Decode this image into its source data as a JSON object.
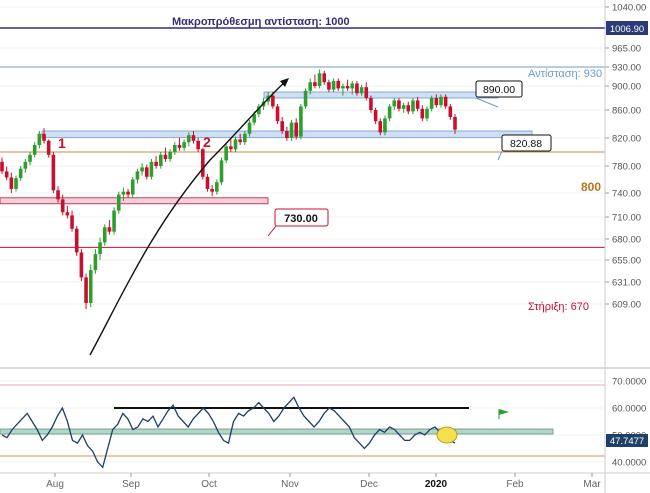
{
  "chart_data": [
    {
      "type": "candlestick",
      "title": "",
      "y_ticks": [
        1040,
        1000,
        965,
        930,
        900,
        860,
        820,
        780,
        740,
        710,
        680,
        655,
        631,
        609
      ],
      "ylim": [
        590,
        1055
      ],
      "x_labels": [
        "Aug",
        "Sep",
        "Oct",
        "Nov",
        "Dec",
        "2020",
        "Feb",
        "Mar"
      ],
      "price_badge": {
        "value": "1006.90",
        "color": "#2b3a78"
      },
      "candles_bull_color": "#2e9e2e",
      "candles_bear_color": "#c8102e",
      "candles": [
        {
          "o": 786,
          "h": 792,
          "l": 768,
          "c": 772
        },
        {
          "o": 772,
          "h": 779,
          "l": 759,
          "c": 763
        },
        {
          "o": 763,
          "h": 770,
          "l": 740,
          "c": 746
        },
        {
          "o": 746,
          "h": 766,
          "l": 742,
          "c": 762
        },
        {
          "o": 762,
          "h": 780,
          "l": 758,
          "c": 776
        },
        {
          "o": 776,
          "h": 790,
          "l": 770,
          "c": 786
        },
        {
          "o": 786,
          "h": 800,
          "l": 781,
          "c": 796
        },
        {
          "o": 796,
          "h": 814,
          "l": 792,
          "c": 810
        },
        {
          "o": 810,
          "h": 830,
          "l": 805,
          "c": 826
        },
        {
          "o": 826,
          "h": 834,
          "l": 812,
          "c": 816
        },
        {
          "o": 816,
          "h": 818,
          "l": 792,
          "c": 796
        },
        {
          "o": 796,
          "h": 800,
          "l": 740,
          "c": 744
        },
        {
          "o": 744,
          "h": 750,
          "l": 728,
          "c": 732
        },
        {
          "o": 732,
          "h": 738,
          "l": 712,
          "c": 716
        },
        {
          "o": 716,
          "h": 724,
          "l": 708,
          "c": 712
        },
        {
          "o": 712,
          "h": 718,
          "l": 690,
          "c": 694
        },
        {
          "o": 694,
          "h": 698,
          "l": 660,
          "c": 664
        },
        {
          "o": 664,
          "h": 668,
          "l": 632,
          "c": 636
        },
        {
          "o": 636,
          "h": 640,
          "l": 604,
          "c": 610
        },
        {
          "o": 610,
          "h": 650,
          "l": 606,
          "c": 644
        },
        {
          "o": 644,
          "h": 668,
          "l": 640,
          "c": 662
        },
        {
          "o": 662,
          "h": 682,
          "l": 655,
          "c": 676
        },
        {
          "o": 676,
          "h": 700,
          "l": 672,
          "c": 696
        },
        {
          "o": 696,
          "h": 706,
          "l": 686,
          "c": 690
        },
        {
          "o": 690,
          "h": 722,
          "l": 686,
          "c": 718
        },
        {
          "o": 718,
          "h": 742,
          "l": 714,
          "c": 738
        },
        {
          "o": 738,
          "h": 748,
          "l": 730,
          "c": 742
        },
        {
          "o": 742,
          "h": 746,
          "l": 734,
          "c": 738
        },
        {
          "o": 738,
          "h": 764,
          "l": 734,
          "c": 760
        },
        {
          "o": 760,
          "h": 776,
          "l": 754,
          "c": 772
        },
        {
          "o": 772,
          "h": 784,
          "l": 766,
          "c": 778
        },
        {
          "o": 778,
          "h": 782,
          "l": 760,
          "c": 764
        },
        {
          "o": 764,
          "h": 790,
          "l": 760,
          "c": 786
        },
        {
          "o": 786,
          "h": 794,
          "l": 776,
          "c": 780
        },
        {
          "o": 780,
          "h": 800,
          "l": 776,
          "c": 796
        },
        {
          "o": 796,
          "h": 806,
          "l": 786,
          "c": 790
        },
        {
          "o": 790,
          "h": 804,
          "l": 786,
          "c": 800
        },
        {
          "o": 800,
          "h": 814,
          "l": 796,
          "c": 810
        },
        {
          "o": 810,
          "h": 820,
          "l": 802,
          "c": 806
        },
        {
          "o": 806,
          "h": 818,
          "l": 802,
          "c": 814
        },
        {
          "o": 814,
          "h": 828,
          "l": 808,
          "c": 824
        },
        {
          "o": 824,
          "h": 830,
          "l": 812,
          "c": 816
        },
        {
          "o": 816,
          "h": 820,
          "l": 800,
          "c": 804
        },
        {
          "o": 804,
          "h": 806,
          "l": 760,
          "c": 764
        },
        {
          "o": 764,
          "h": 768,
          "l": 742,
          "c": 746
        },
        {
          "o": 746,
          "h": 752,
          "l": 736,
          "c": 742
        },
        {
          "o": 742,
          "h": 760,
          "l": 738,
          "c": 756
        },
        {
          "o": 756,
          "h": 792,
          "l": 752,
          "c": 788
        },
        {
          "o": 788,
          "h": 812,
          "l": 784,
          "c": 808
        },
        {
          "o": 808,
          "h": 818,
          "l": 800,
          "c": 804
        },
        {
          "o": 804,
          "h": 822,
          "l": 800,
          "c": 818
        },
        {
          "o": 818,
          "h": 826,
          "l": 810,
          "c": 814
        },
        {
          "o": 814,
          "h": 830,
          "l": 810,
          "c": 826
        },
        {
          "o": 826,
          "h": 846,
          "l": 822,
          "c": 842
        },
        {
          "o": 842,
          "h": 858,
          "l": 838,
          "c": 854
        },
        {
          "o": 854,
          "h": 870,
          "l": 850,
          "c": 866
        },
        {
          "o": 866,
          "h": 880,
          "l": 860,
          "c": 874
        },
        {
          "o": 874,
          "h": 890,
          "l": 868,
          "c": 884
        },
        {
          "o": 884,
          "h": 890,
          "l": 862,
          "c": 866
        },
        {
          "o": 866,
          "h": 870,
          "l": 840,
          "c": 844
        },
        {
          "o": 844,
          "h": 850,
          "l": 826,
          "c": 830
        },
        {
          "o": 830,
          "h": 836,
          "l": 816,
          "c": 820
        },
        {
          "o": 820,
          "h": 846,
          "l": 816,
          "c": 842
        },
        {
          "o": 842,
          "h": 848,
          "l": 818,
          "c": 822
        },
        {
          "o": 822,
          "h": 870,
          "l": 818,
          "c": 866
        },
        {
          "o": 866,
          "h": 896,
          "l": 862,
          "c": 892
        },
        {
          "o": 892,
          "h": 912,
          "l": 886,
          "c": 906
        },
        {
          "o": 906,
          "h": 918,
          "l": 896,
          "c": 900
        },
        {
          "o": 900,
          "h": 926,
          "l": 896,
          "c": 920
        },
        {
          "o": 920,
          "h": 924,
          "l": 902,
          "c": 906
        },
        {
          "o": 906,
          "h": 910,
          "l": 890,
          "c": 894
        },
        {
          "o": 894,
          "h": 912,
          "l": 890,
          "c": 908
        },
        {
          "o": 908,
          "h": 912,
          "l": 892,
          "c": 896
        },
        {
          "o": 896,
          "h": 904,
          "l": 884,
          "c": 900
        },
        {
          "o": 900,
          "h": 910,
          "l": 892,
          "c": 896
        },
        {
          "o": 896,
          "h": 908,
          "l": 886,
          "c": 904
        },
        {
          "o": 904,
          "h": 908,
          "l": 884,
          "c": 888
        },
        {
          "o": 888,
          "h": 902,
          "l": 884,
          "c": 898
        },
        {
          "o": 898,
          "h": 906,
          "l": 876,
          "c": 880
        },
        {
          "o": 880,
          "h": 884,
          "l": 856,
          "c": 860
        },
        {
          "o": 860,
          "h": 864,
          "l": 840,
          "c": 844
        },
        {
          "o": 844,
          "h": 848,
          "l": 824,
          "c": 828
        },
        {
          "o": 828,
          "h": 852,
          "l": 824,
          "c": 848
        },
        {
          "o": 848,
          "h": 870,
          "l": 844,
          "c": 866
        },
        {
          "o": 866,
          "h": 880,
          "l": 860,
          "c": 876
        },
        {
          "o": 876,
          "h": 880,
          "l": 858,
          "c": 862
        },
        {
          "o": 862,
          "h": 872,
          "l": 856,
          "c": 868
        },
        {
          "o": 868,
          "h": 874,
          "l": 854,
          "c": 858
        },
        {
          "o": 858,
          "h": 880,
          "l": 854,
          "c": 876
        },
        {
          "o": 876,
          "h": 882,
          "l": 858,
          "c": 862
        },
        {
          "o": 862,
          "h": 868,
          "l": 844,
          "c": 848
        },
        {
          "o": 848,
          "h": 866,
          "l": 844,
          "c": 862
        },
        {
          "o": 862,
          "h": 884,
          "l": 858,
          "c": 880
        },
        {
          "o": 880,
          "h": 886,
          "l": 864,
          "c": 868
        },
        {
          "o": 868,
          "h": 886,
          "l": 864,
          "c": 882
        },
        {
          "o": 882,
          "h": 886,
          "l": 862,
          "c": 866
        },
        {
          "o": 866,
          "h": 870,
          "l": 846,
          "c": 850
        },
        {
          "o": 850,
          "h": 854,
          "l": 826,
          "c": 832
        }
      ],
      "levels": [
        {
          "value": 1000,
          "label": "Μακροπρόθεσμη αντίσταση: 1000",
          "color": "#3a2a7a"
        },
        {
          "value": 930,
          "label": "Αντίσταση: 930",
          "color": "#6d9bc9"
        },
        {
          "value": 800,
          "label": "800",
          "color": "#c48a3c"
        },
        {
          "value": 670,
          "label": "Στήριξη: 670",
          "color": "#c8102e"
        }
      ],
      "zones": [
        {
          "from": 880,
          "to": 890,
          "label": "890.00",
          "color": "#c9d9f0",
          "border": "#6d9bc9"
        },
        {
          "from": 820.88,
          "to": 830,
          "label": "820.88",
          "color": "#c9d9f0",
          "border": "#6d9bc9"
        },
        {
          "from": 727,
          "to": 734,
          "label": "730.00",
          "color": "#efc9d6",
          "border": "#c8102e"
        }
      ],
      "markers": [
        "1",
        "2"
      ]
    },
    {
      "type": "line",
      "title": "",
      "y_ticks": [
        "70.0000",
        "60.0000",
        "50.0000",
        "40.0000"
      ],
      "ylim": [
        37,
        73
      ],
      "last_value": "47.7477",
      "series_color": "#1f3f66",
      "values": [
        50,
        49,
        52,
        54,
        56,
        58,
        55,
        52,
        48,
        50,
        53,
        57,
        60,
        55,
        48,
        47,
        50,
        46,
        44,
        40,
        38,
        45,
        52,
        54,
        58,
        56,
        52,
        53,
        56,
        55,
        57,
        53,
        56,
        59,
        61,
        57,
        55,
        53,
        56,
        58,
        60,
        58,
        55,
        51,
        48,
        47,
        55,
        58,
        57,
        59,
        60,
        62,
        60,
        58,
        55,
        57,
        60,
        62,
        64,
        60,
        57,
        55,
        53,
        55,
        58,
        60,
        59,
        57,
        55,
        53,
        49,
        47,
        45,
        47,
        50,
        52,
        51,
        53,
        52,
        50,
        48,
        48,
        50,
        51,
        50,
        52,
        53,
        51,
        49,
        48,
        47
      ]
    }
  ]
}
